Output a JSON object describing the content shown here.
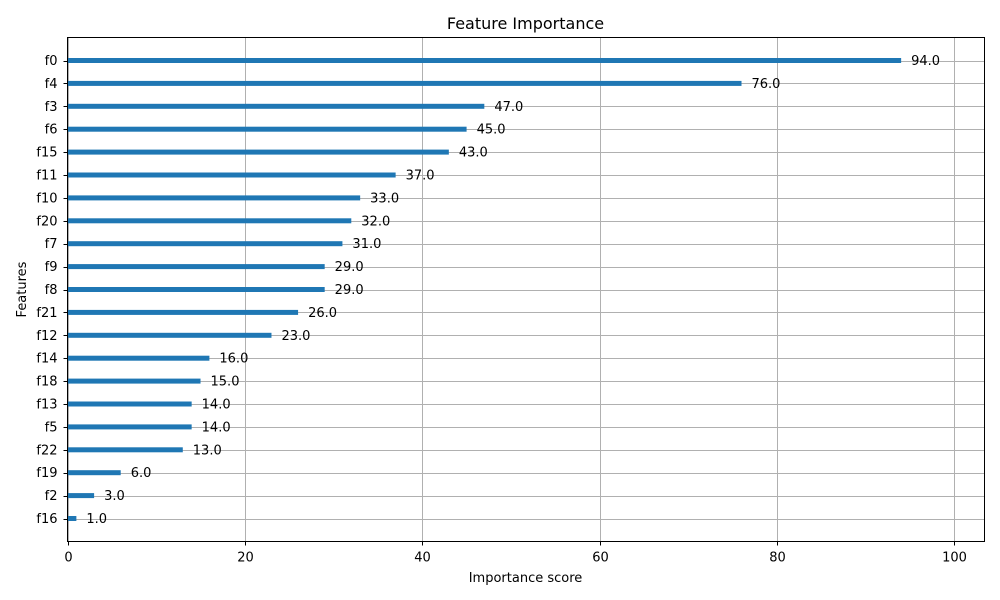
{
  "chart_data": {
    "type": "bar",
    "orientation": "horizontal",
    "title": "Feature Importance",
    "xlabel": "Importance score",
    "ylabel": "Features",
    "xlim": [
      0,
      103.4
    ],
    "xticks": [
      0,
      20,
      40,
      60,
      80,
      100
    ],
    "grid": true,
    "bar_color": "#1f77b4",
    "categories": [
      "f0",
      "f4",
      "f3",
      "f6",
      "f15",
      "f11",
      "f10",
      "f20",
      "f7",
      "f9",
      "f8",
      "f21",
      "f12",
      "f14",
      "f18",
      "f13",
      "f5",
      "f22",
      "f19",
      "f2",
      "f16"
    ],
    "values": [
      94,
      76,
      47,
      45,
      43,
      37,
      33,
      32,
      31,
      29,
      29,
      26,
      23,
      16,
      15,
      14,
      14,
      13,
      6,
      3,
      1
    ],
    "value_labels": [
      "94.0",
      "76.0",
      "47.0",
      "45.0",
      "43.0",
      "37.0",
      "33.0",
      "32.0",
      "31.0",
      "29.0",
      "29.0",
      "26.0",
      "23.0",
      "16.0",
      "15.0",
      "14.0",
      "14.0",
      "13.0",
      "6.0",
      "3.0",
      "1.0"
    ]
  }
}
